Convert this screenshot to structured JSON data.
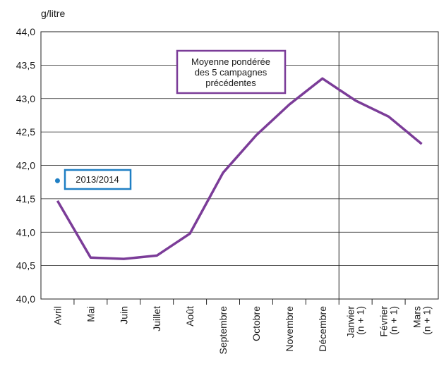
{
  "chart_data": {
    "type": "line",
    "y_label": "g/litre",
    "categories": [
      "Avril",
      "Mai",
      "Juin",
      "Juillet",
      "Août",
      "Septembre",
      "Octobre",
      "Novembre",
      "Décembre",
      "Janvier\n(n + 1)",
      "Février\n(n + 1)",
      "Mars\n(n + 1)"
    ],
    "series": [
      {
        "name": "Moyenne pondérée\ndes 5 campagnes\nprécédentes",
        "color": "#7b3c98",
        "values": [
          41.47,
          40.62,
          40.6,
          40.65,
          40.98,
          41.89,
          42.45,
          42.91,
          43.3,
          42.97,
          42.73,
          42.32
        ]
      },
      {
        "name": "2013/2014",
        "color": "#1f7fc4",
        "values": [
          41.77,
          null,
          null,
          null,
          null,
          null,
          null,
          null,
          null,
          null,
          null,
          null
        ]
      }
    ],
    "ylim": [
      40.0,
      44.0
    ],
    "yticks": [
      {
        "value": 40.0,
        "label": "40,0"
      },
      {
        "value": 40.5,
        "label": "40,5"
      },
      {
        "value": 41.0,
        "label": "41,0"
      },
      {
        "value": 41.5,
        "label": "41,5"
      },
      {
        "value": 42.0,
        "label": "42,0"
      },
      {
        "value": 42.5,
        "label": "42,5"
      },
      {
        "value": 43.0,
        "label": "43,0"
      },
      {
        "value": 43.5,
        "label": "43,5"
      },
      {
        "value": 44.0,
        "label": "44,0"
      }
    ],
    "grid": true
  }
}
